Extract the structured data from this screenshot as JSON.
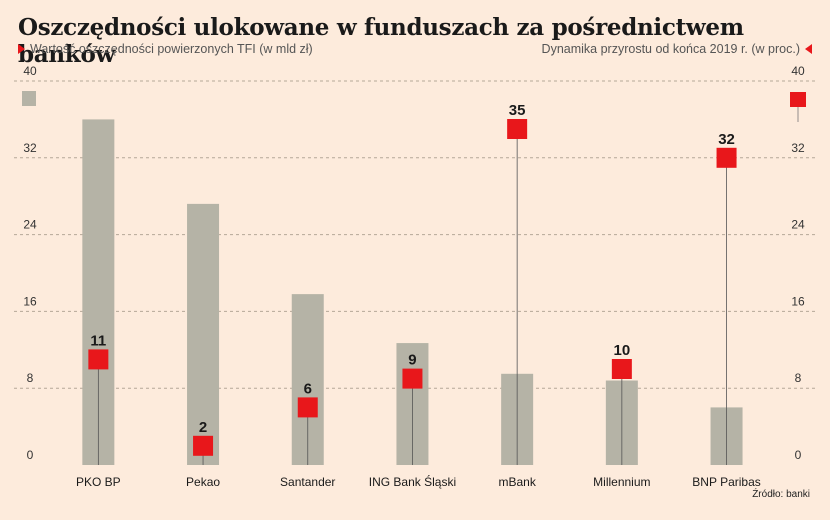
{
  "title": "Oszczędności ulokowane w funduszach za pośrednictwem banków",
  "legend_left": "Wartość oszczędności powierzonych TFI (w mld zł)",
  "legend_right": "Dynamika przyrostu od końca 2019 r. (w proc.)",
  "source": "Źródło: banki",
  "colors": {
    "bar": "#b5b3a6",
    "marker": "#e8171b",
    "background": "#fdebdc",
    "grid": "#b5a898"
  },
  "chart_data": {
    "type": "bar",
    "categories": [
      "PKO BP",
      "Pekao",
      "Santander",
      "ING Bank Śląski",
      "mBank",
      "Millennium",
      "BNP Paribas"
    ],
    "series": [
      {
        "name": "Wartość oszczędności powierzonych TFI (w mld zł)",
        "type": "bar",
        "axis": "left",
        "values": [
          36,
          27.2,
          17.8,
          12.7,
          9.5,
          8.8,
          6
        ]
      },
      {
        "name": "Dynamika przyrostu od końca 2019 r. (w proc.)",
        "type": "marker",
        "axis": "right",
        "values": [
          11,
          2,
          6,
          9,
          35,
          10,
          32
        ],
        "labels": [
          "11",
          "2",
          "6",
          "9",
          "35",
          "10",
          "32"
        ]
      }
    ],
    "y_left": {
      "min": 0,
      "max": 40,
      "ticks": [
        "0",
        "8",
        "16",
        "24",
        "32",
        "40"
      ]
    },
    "y_right": {
      "min": 0,
      "max": 40,
      "ticks": [
        "0",
        "8",
        "16",
        "24",
        "32",
        "40"
      ]
    },
    "grid": true
  }
}
